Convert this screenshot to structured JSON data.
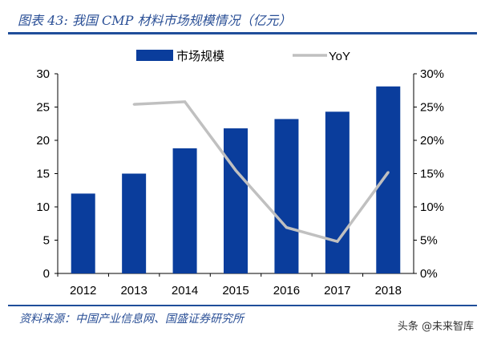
{
  "header": {
    "title": "图表 43: 我国 CMP 材料市场规模情况（亿元）"
  },
  "footer": {
    "source": "资料来源：中国产业信息网、国盛证券研究所",
    "watermark": "头条 @未来智库"
  },
  "chart_data": {
    "type": "bar+line",
    "categories": [
      "2012",
      "2013",
      "2014",
      "2015",
      "2016",
      "2017",
      "2018"
    ],
    "series": [
      {
        "name": "市场规模",
        "type": "bar",
        "axis": "left",
        "color": "#0a3d9c",
        "values": [
          12.0,
          15.0,
          18.8,
          21.8,
          23.2,
          24.3,
          28.1
        ]
      },
      {
        "name": "YoY",
        "type": "line",
        "axis": "right",
        "color": "#c0c0c0",
        "values": [
          null,
          25.4,
          25.8,
          15.5,
          6.9,
          4.8,
          15.2
        ]
      }
    ],
    "ylim": [
      0,
      30
    ],
    "yticks": [
      "0",
      "5",
      "10",
      "15",
      "20",
      "25",
      "30"
    ],
    "y2lim": [
      0,
      30
    ],
    "y2ticks": [
      "0%",
      "5%",
      "10%",
      "15%",
      "20%",
      "25%",
      "30%"
    ],
    "legend": "top",
    "grid": false
  }
}
